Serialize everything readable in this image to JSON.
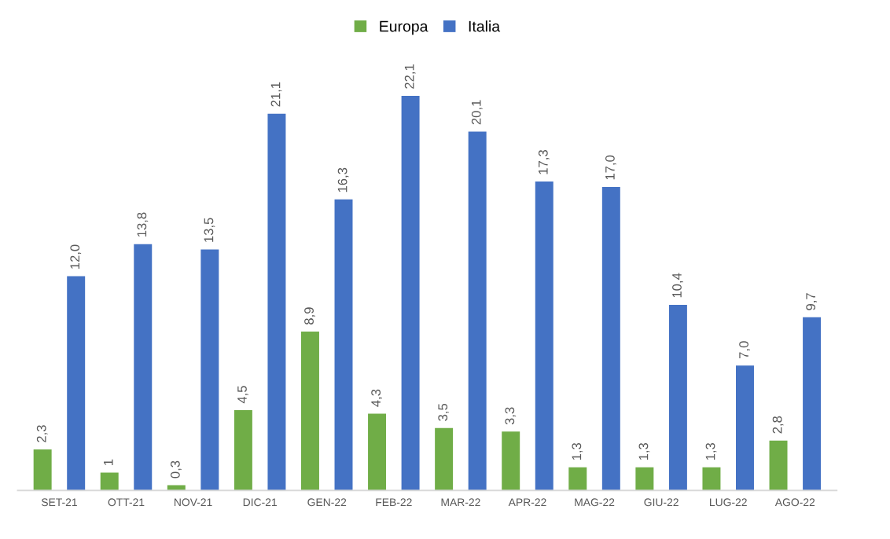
{
  "chart_data": {
    "type": "bar",
    "categories": [
      "SET-21",
      "OTT-21",
      "NOV-21",
      "DIC-21",
      "GEN-22",
      "FEB-22",
      "MAR-22",
      "APR-22",
      "MAG-22",
      "GIU-22",
      "LUG-22",
      "AGO-22"
    ],
    "series": [
      {
        "name": "Europa",
        "color": "#70ad47",
        "values": [
          2.3,
          1,
          0.3,
          4.5,
          8.9,
          4.3,
          3.5,
          3.3,
          1.3,
          1.3,
          1.3,
          2.8
        ],
        "value_labels": [
          "2,3",
          "1",
          "0,3",
          "4,5",
          "8,9",
          "4,3",
          "3,5",
          "3,3",
          "1,3",
          "1,3",
          "1,3",
          "2,8"
        ]
      },
      {
        "name": "Italia",
        "color": "#4472c4",
        "values": [
          12.0,
          13.8,
          13.5,
          21.1,
          16.3,
          22.1,
          20.1,
          17.3,
          17.0,
          10.4,
          7.0,
          9.7
        ],
        "value_labels": [
          "12,0",
          "13,8",
          "13,5",
          "21,1",
          "16,3",
          "22,1",
          "20,1",
          "17,3",
          "17,0",
          "10,4",
          "7,0",
          "9,7"
        ]
      }
    ],
    "legend": "top",
    "grid": false
  }
}
